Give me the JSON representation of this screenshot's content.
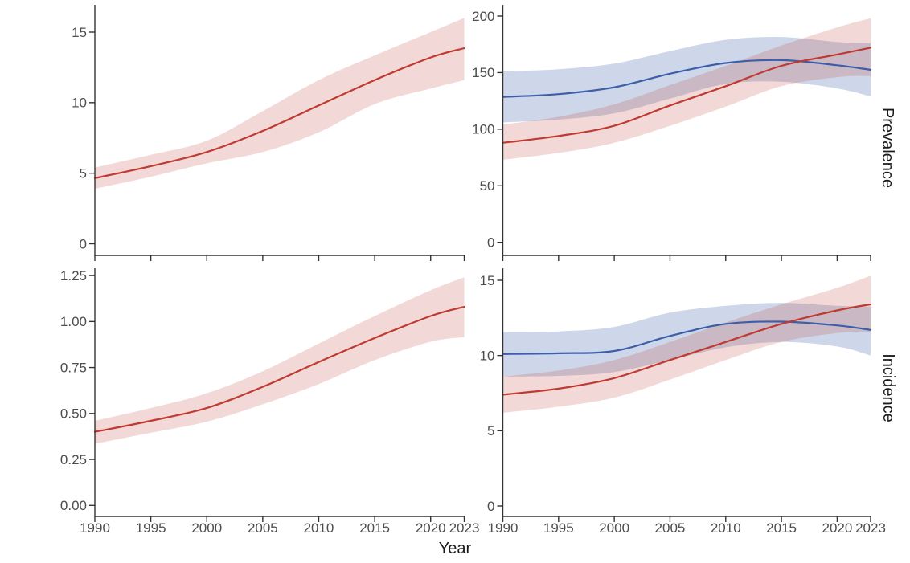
{
  "figure": {
    "xlabel": "Year",
    "row_labels": {
      "top": "Prevalence",
      "bottom": "Incidence"
    },
    "x_tick_labels": [
      "1990",
      "1995",
      "2000",
      "2005",
      "2010",
      "2015",
      "2020",
      "2023"
    ],
    "background": "#ffffff",
    "axis_color": "#333333",
    "tick_label_color": "#4d4d4d"
  },
  "chart_data": [
    {
      "position": "top_left",
      "type": "line",
      "x": [
        1990,
        1995,
        2000,
        2005,
        2010,
        2015,
        2020,
        2023
      ],
      "xlim": [
        1990,
        2023
      ],
      "ylim": [
        -0.9,
        16.9
      ],
      "y_ticks": [
        0,
        5,
        10,
        15
      ],
      "y_tick_labels": [
        "0",
        "5",
        "10",
        "15"
      ],
      "grid": false,
      "legend": "none",
      "series": [
        {
          "name": "red",
          "color": "#bf3a30",
          "band_color": "rgba(191,58,48,0.20)",
          "values": [
            4.65,
            5.5,
            6.5,
            8.0,
            9.8,
            11.6,
            13.2,
            13.86
          ],
          "lower": [
            3.9,
            4.75,
            5.7,
            6.5,
            7.9,
            9.9,
            11.0,
            11.6
          ],
          "upper": [
            5.4,
            6.3,
            7.3,
            9.4,
            11.6,
            13.35,
            15.0,
            16.0
          ]
        }
      ]
    },
    {
      "position": "top_right",
      "type": "line",
      "row_label": "Prevalence",
      "x": [
        1990,
        1995,
        2000,
        2005,
        2010,
        2015,
        2020,
        2023
      ],
      "xlim": [
        1990,
        2023
      ],
      "ylim": [
        -12,
        212
      ],
      "y_ticks": [
        0,
        50,
        100,
        150,
        200
      ],
      "y_tick_labels": [
        "0",
        "50",
        "100",
        "150",
        "200"
      ],
      "grid": false,
      "legend": "none",
      "series": [
        {
          "name": "blue",
          "color": "#3d5ea8",
          "band_color": "rgba(61,94,168,0.25)",
          "values": [
            128.5,
            131,
            137,
            149,
            158.5,
            161,
            156.5,
            152.5
          ],
          "lower": [
            106,
            108.5,
            114,
            127,
            140,
            142,
            136,
            129
          ],
          "upper": [
            151,
            153,
            158,
            169,
            179,
            181.5,
            177,
            176
          ]
        },
        {
          "name": "red",
          "color": "#bf3a30",
          "band_color": "rgba(191,58,48,0.20)",
          "values": [
            88,
            94,
            103,
            121,
            138,
            156,
            166,
            172
          ],
          "lower": [
            73,
            79,
            88,
            103,
            120,
            138,
            146,
            147
          ],
          "upper": [
            104,
            111,
            122,
            139,
            156,
            174,
            190,
            198
          ]
        }
      ]
    },
    {
      "position": "bottom_left",
      "type": "line",
      "x": [
        1990,
        1995,
        2000,
        2005,
        2010,
        2015,
        2020,
        2023
      ],
      "xlim": [
        1990,
        2023
      ],
      "ylim": [
        -0.06,
        1.31
      ],
      "y_ticks": [
        0,
        0.25,
        0.5,
        0.75,
        1.0,
        1.25
      ],
      "y_tick_labels": [
        "0.00",
        "0.25",
        "0.50",
        "0.75",
        "1.00",
        "1.25"
      ],
      "grid": false,
      "legend": "none",
      "series": [
        {
          "name": "red",
          "color": "#bf3a30",
          "band_color": "rgba(191,58,48,0.20)",
          "values": [
            0.4,
            0.46,
            0.53,
            0.645,
            0.78,
            0.91,
            1.03,
            1.08
          ],
          "lower": [
            0.335,
            0.395,
            0.455,
            0.55,
            0.66,
            0.79,
            0.89,
            0.915
          ],
          "upper": [
            0.46,
            0.53,
            0.61,
            0.73,
            0.88,
            1.03,
            1.17,
            1.24
          ]
        }
      ]
    },
    {
      "position": "bottom_right",
      "type": "line",
      "row_label": "Incidence",
      "x": [
        1990,
        1995,
        2000,
        2005,
        2010,
        2015,
        2020,
        2023
      ],
      "xlim": [
        1990,
        2023
      ],
      "ylim": [
        -0.7,
        15.7
      ],
      "y_ticks": [
        0,
        5,
        10,
        15
      ],
      "y_tick_labels": [
        "0",
        "5",
        "10",
        "15"
      ],
      "grid": false,
      "legend": "none",
      "series": [
        {
          "name": "blue",
          "color": "#3d5ea8",
          "band_color": "rgba(61,94,168,0.25)",
          "values": [
            10.1,
            10.15,
            10.3,
            11.3,
            12.1,
            12.25,
            12.0,
            11.7
          ],
          "lower": [
            8.6,
            8.65,
            8.9,
            9.7,
            10.55,
            10.9,
            10.6,
            10.0
          ],
          "upper": [
            11.55,
            11.6,
            11.9,
            12.85,
            13.3,
            13.5,
            13.3,
            13.25
          ]
        },
        {
          "name": "red",
          "color": "#bf3a30",
          "band_color": "rgba(191,58,48,0.20)",
          "values": [
            7.4,
            7.8,
            8.5,
            9.7,
            10.9,
            12.1,
            13.0,
            13.4
          ],
          "lower": [
            6.2,
            6.6,
            7.2,
            8.4,
            9.7,
            10.9,
            11.5,
            11.6
          ],
          "upper": [
            8.6,
            9.0,
            9.7,
            10.9,
            12.2,
            13.4,
            14.5,
            15.3
          ]
        }
      ]
    }
  ]
}
